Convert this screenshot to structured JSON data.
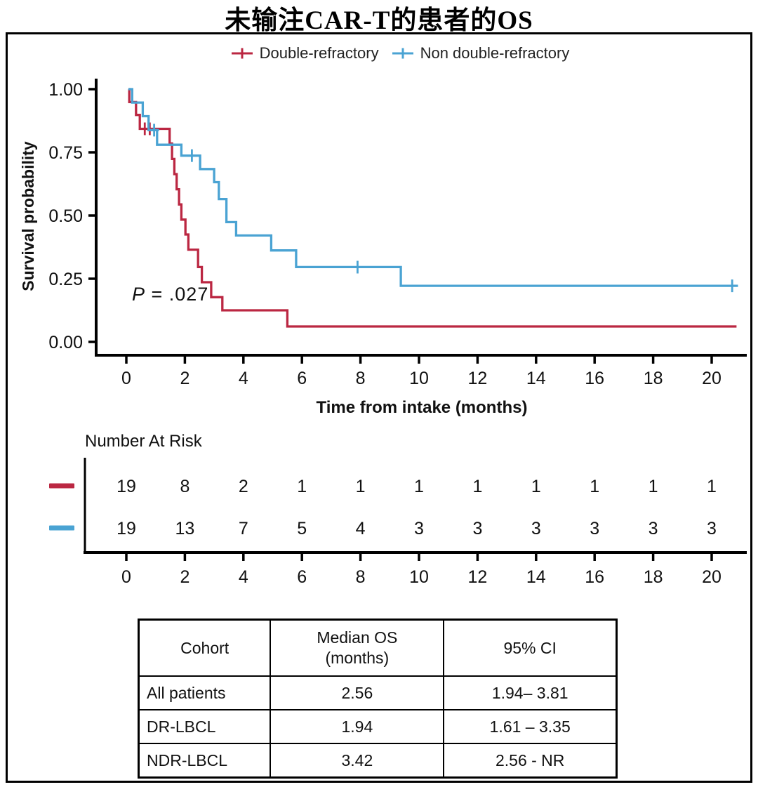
{
  "title": "未输注CAR-T的患者的OS",
  "chart_data": {
    "type": "line",
    "subtype": "kaplan-meier-step",
    "title": "未输注CAR-T的患者的OS",
    "xlabel": "Time from intake (months)",
    "ylabel": "Survival probability",
    "xlim": [
      0,
      21
    ],
    "ylim": [
      0,
      1.0
    ],
    "xticks": [
      0,
      2,
      4,
      6,
      8,
      10,
      12,
      14,
      16,
      18,
      20
    ],
    "yticks": [
      1.0,
      0.75,
      0.5,
      0.25,
      0.0
    ],
    "ytick_labels": [
      "1.00",
      "0.75",
      "0.50",
      "0.25",
      "0.00"
    ],
    "grid": false,
    "legend_position": "top-center",
    "pvalue": "P = .027",
    "axis_color": "#000000",
    "series": [
      {
        "name": "Double-refractory",
        "color": "#bb2742",
        "steps": [
          [
            0.08,
            1.0
          ],
          [
            0.1,
            0.949
          ],
          [
            0.33,
            0.898
          ],
          [
            0.46,
            0.843
          ],
          [
            1.48,
            0.785
          ],
          [
            1.56,
            0.724
          ],
          [
            1.64,
            0.664
          ],
          [
            1.72,
            0.604
          ],
          [
            1.8,
            0.544
          ],
          [
            1.88,
            0.484
          ],
          [
            2.02,
            0.425
          ],
          [
            2.12,
            0.365
          ],
          [
            2.45,
            0.296
          ],
          [
            2.58,
            0.236
          ],
          [
            2.9,
            0.177
          ],
          [
            3.28,
            0.125
          ],
          [
            5.5,
            0.061
          ],
          [
            20.85,
            0.061
          ]
        ],
        "censors": [
          [
            0.63,
            0.843
          ],
          [
            0.8,
            0.843
          ]
        ]
      },
      {
        "name": "Non double-refractory",
        "color": "#4aa3d3",
        "steps": [
          [
            0.07,
            1.0
          ],
          [
            0.2,
            0.947
          ],
          [
            0.56,
            0.893
          ],
          [
            0.76,
            0.838
          ],
          [
            1.05,
            0.78
          ],
          [
            1.88,
            0.737
          ],
          [
            2.52,
            0.684
          ],
          [
            3.0,
            0.632
          ],
          [
            3.16,
            0.565
          ],
          [
            3.42,
            0.474
          ],
          [
            3.75,
            0.421
          ],
          [
            4.95,
            0.362
          ],
          [
            5.8,
            0.296
          ],
          [
            9.38,
            0.222
          ],
          [
            20.9,
            0.222
          ]
        ],
        "censors": [
          [
            0.95,
            0.838
          ],
          [
            2.24,
            0.737
          ],
          [
            7.9,
            0.296
          ],
          [
            20.7,
            0.222
          ]
        ]
      }
    ],
    "risk_table": {
      "label": "Number At Risk",
      "times": [
        0,
        2,
        4,
        6,
        8,
        10,
        12,
        14,
        16,
        18,
        20
      ],
      "rows": [
        {
          "name": "Double-refractory",
          "color": "#bb2742",
          "counts": [
            19,
            8,
            2,
            1,
            1,
            1,
            1,
            1,
            1,
            1,
            1
          ]
        },
        {
          "name": "Non double-refractory",
          "color": "#4aa3d3",
          "counts": [
            19,
            13,
            7,
            5,
            4,
            3,
            3,
            3,
            3,
            3,
            3
          ]
        }
      ]
    }
  },
  "summary_table": {
    "headers": [
      "Cohort",
      "Median OS\n(months)",
      "95% CI"
    ],
    "rows": [
      [
        "All patients",
        "2.56",
        "1.94– 3.81"
      ],
      [
        "DR-LBCL",
        "1.94",
        "1.61 – 3.35"
      ],
      [
        "NDR-LBCL",
        "3.42",
        "2.56 - NR"
      ]
    ]
  }
}
